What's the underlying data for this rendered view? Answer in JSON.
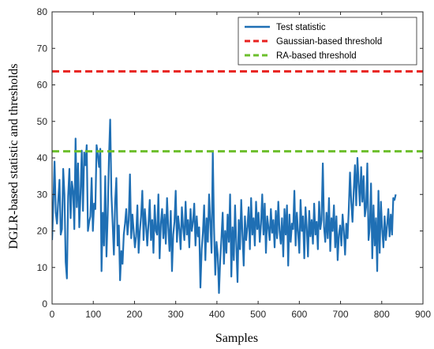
{
  "chart_data": {
    "type": "line",
    "xlabel": "Samples",
    "ylabel": "DGLR-based statistic and thresholds",
    "xlim": [
      0,
      900
    ],
    "ylim": [
      0,
      80
    ],
    "xticks": [
      "0",
      "100",
      "200",
      "300",
      "400",
      "500",
      "600",
      "700",
      "800",
      "900"
    ],
    "yticks": [
      "0",
      "10",
      "20",
      "30",
      "40",
      "50",
      "60",
      "70",
      "80"
    ],
    "grid": false,
    "legend_position": "top-right",
    "series": [
      {
        "name": "Test statistic",
        "style": "solid",
        "color": "#1f6fb4",
        "x_step": 3,
        "values": [
          17.5,
          27.5,
          39,
          25,
          22,
          28.5,
          34,
          19,
          20.5,
          37,
          30,
          11.5,
          7,
          29.5,
          37,
          23.5,
          33.5,
          31,
          20.5,
          45.3,
          26.5,
          38.5,
          21,
          30,
          42,
          25.5,
          41.5,
          38,
          43.5,
          20,
          22.5,
          24,
          34.5,
          20,
          27.5,
          26,
          43.5,
          41,
          37.5,
          42.5,
          9,
          25,
          16,
          35,
          13,
          24.5,
          40,
          50.5,
          30,
          22,
          13.5,
          28,
          34.5,
          16,
          21.5,
          6.5,
          14.5,
          11,
          19,
          22,
          26,
          19,
          23,
          35.5,
          18,
          24.5,
          20,
          15.5,
          18.5,
          27,
          14,
          20,
          24,
          31,
          17.5,
          26,
          21.5,
          16,
          22,
          28.5,
          17.5,
          23,
          14,
          27,
          20,
          19,
          30,
          12.5,
          22,
          26,
          18,
          24.5,
          16.5,
          29,
          21,
          14.5,
          25.5,
          9,
          19,
          22.5,
          31,
          17,
          24,
          20.5,
          15,
          26.5,
          21,
          17.5,
          28,
          19,
          23,
          15.5,
          26,
          20,
          22.5,
          27.5,
          16,
          24,
          18.5,
          21,
          4.5,
          15,
          19.5,
          27,
          12,
          23.5,
          17,
          30,
          22,
          14,
          41.5,
          21,
          8,
          17,
          13.5,
          3,
          12,
          18,
          25,
          11,
          20,
          14,
          24.5,
          17,
          30,
          7.5,
          21,
          12,
          27,
          16.5,
          6,
          23,
          15,
          28.5,
          19,
          10.5,
          24,
          17.5,
          21,
          26.5,
          15,
          29,
          19,
          23.5,
          16,
          28,
          20.5,
          25,
          17,
          22,
          30,
          19,
          27.5,
          14,
          24,
          21,
          17.5,
          26,
          19.5,
          23,
          15.5,
          25.5,
          18,
          28,
          20,
          16.5,
          23.5,
          13,
          26,
          19,
          27,
          10.5,
          24.5,
          17,
          22,
          20.5,
          31,
          16,
          25,
          19.5,
          14,
          28.5,
          20,
          24,
          12.5,
          26.5,
          21,
          13,
          25.5,
          18.5,
          23,
          16.5,
          27.5,
          19,
          22.5,
          15,
          28,
          20.5,
          23,
          38.5,
          21,
          17,
          25,
          18,
          29,
          14.5,
          23.5,
          20,
          27,
          15.5,
          24,
          12,
          19,
          21.5,
          16,
          24.5,
          20,
          13.5,
          22,
          18,
          26,
          36,
          28,
          22.5,
          31,
          38,
          27,
          40,
          33,
          27,
          37.5,
          28,
          35,
          24,
          26.5,
          38.5,
          17.5,
          21,
          33,
          12.5,
          27,
          16,
          23.5,
          9,
          31,
          14,
          28,
          20.5,
          15.5,
          24,
          17.5,
          21.5,
          26,
          18.5,
          24.5,
          19,
          29,
          28.5,
          30
        ]
      },
      {
        "name": "Gaussian-based threshold",
        "style": "dashed",
        "color": "#e8211f",
        "value": 63.7
      },
      {
        "name": "RA-based threshold",
        "style": "dashed",
        "color": "#6cbf2c",
        "value": 41.8
      }
    ]
  }
}
